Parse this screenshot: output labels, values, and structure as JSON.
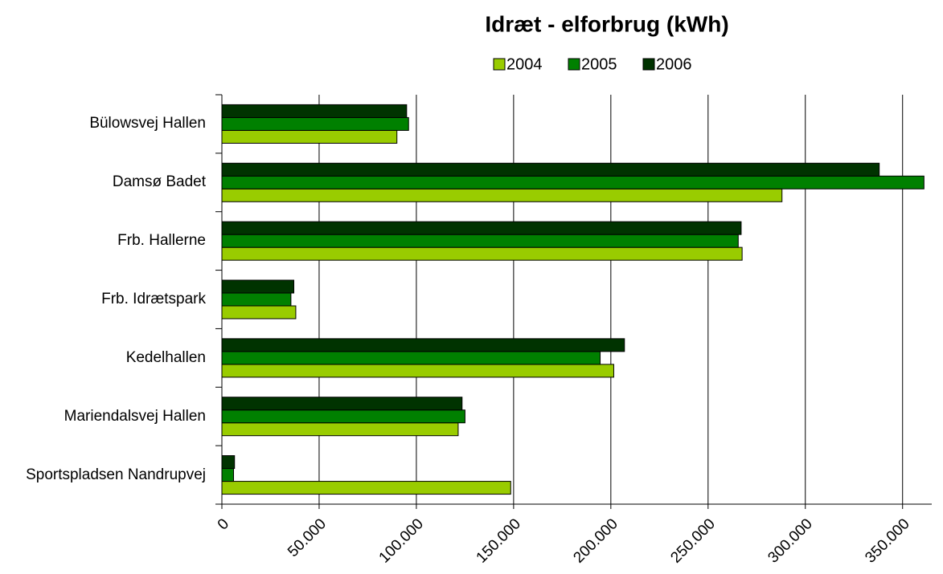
{
  "chart_data": {
    "type": "hbar",
    "title": "Idræt - elforbrug (kWh)",
    "categories": [
      "Bülowsvej Hallen",
      "Damsø Badet",
      "Frb. Hallerne",
      "Frb. Idrætspark",
      "Kedelhallen",
      "Mariendalsvej Hallen",
      "Sportspladsen Nandrupvej"
    ],
    "series": [
      {
        "name": "2004",
        "color": "#99cc00",
        "values": [
          90000,
          288000,
          267500,
          38000,
          201500,
          121500,
          148500
        ]
      },
      {
        "name": "2005",
        "color": "#008000",
        "values": [
          96000,
          361000,
          265500,
          35500,
          194500,
          125000,
          6000
        ]
      },
      {
        "name": "2006",
        "color": "#003300",
        "values": [
          95000,
          338000,
          267000,
          37000,
          207000,
          123500,
          6500
        ]
      }
    ],
    "xlim": [
      0,
      365000
    ],
    "xticks": [
      0,
      {
        "value": 50000,
        "label": "50.000"
      },
      {
        "value": 100000,
        "label": "100.000"
      },
      {
        "value": 150000,
        "label": "150.000"
      },
      {
        "value": 200000,
        "label": "200.000"
      },
      {
        "value": 250000,
        "label": "250.000"
      },
      {
        "value": 300000,
        "label": "300.000"
      },
      {
        "value": 350000,
        "label": "350.000"
      }
    ],
    "grid": true,
    "legend": "top"
  }
}
